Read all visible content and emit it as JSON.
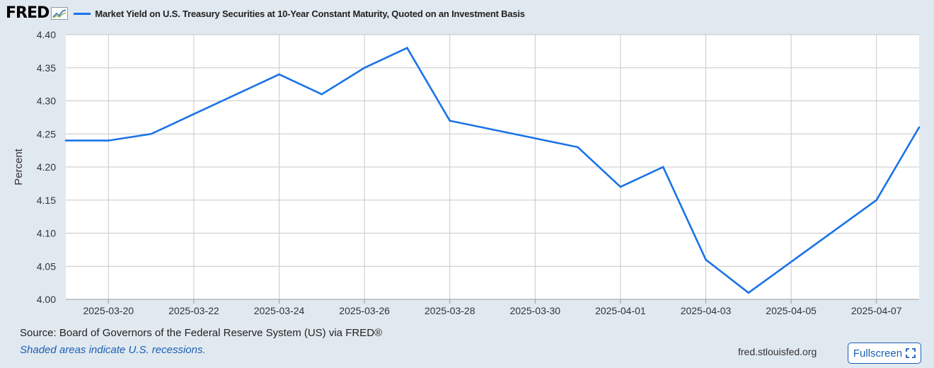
{
  "header": {
    "logo_text": "FRED",
    "legend_label": "Market Yield on U.S. Treasury Securities at 10-Year Constant Maturity, Quoted on an Investment Basis"
  },
  "footer": {
    "source": "Source: Board of Governors of the Federal Reserve System (US) via FRED®",
    "recession_note": "Shaded areas indicate U.S. recessions.",
    "site_url": "fred.stlouisfed.org",
    "fullscreen_label": "Fullscreen"
  },
  "colors": {
    "series": "#1a73e8",
    "background": "#e1e9f0",
    "plot_bg": "#ffffff",
    "grid": "#c8c8c8",
    "link": "#1a5fb4"
  },
  "chart_data": {
    "type": "line",
    "title": "",
    "ylabel": "Percent",
    "xlabel": "",
    "ylim": [
      4.0,
      4.4
    ],
    "xlim": [
      "2025-03-19",
      "2025-04-08"
    ],
    "yticks": [
      "4.00",
      "4.05",
      "4.10",
      "4.15",
      "4.20",
      "4.25",
      "4.30",
      "4.35",
      "4.40"
    ],
    "xticks": [
      "2025-03-20",
      "2025-03-22",
      "2025-03-24",
      "2025-03-26",
      "2025-03-28",
      "2025-03-30",
      "2025-04-01",
      "2025-04-03",
      "2025-04-05",
      "2025-04-07"
    ],
    "grid": true,
    "series": [
      {
        "name": "Market Yield on U.S. Treasury Securities at 10-Year Constant Maturity, Quoted on an Investment Basis",
        "points": [
          [
            "2025-03-19",
            4.24
          ],
          [
            "2025-03-20",
            4.24
          ],
          [
            "2025-03-21",
            4.25
          ],
          [
            "2025-03-24",
            4.34
          ],
          [
            "2025-03-25",
            4.31
          ],
          [
            "2025-03-26",
            4.35
          ],
          [
            "2025-03-27",
            4.38
          ],
          [
            "2025-03-28",
            4.27
          ],
          [
            "2025-03-31",
            4.23
          ],
          [
            "2025-04-01",
            4.17
          ],
          [
            "2025-04-02",
            4.2
          ],
          [
            "2025-04-03",
            4.06
          ],
          [
            "2025-04-04",
            4.01
          ],
          [
            "2025-04-07",
            4.15
          ],
          [
            "2025-04-08",
            4.26
          ]
        ]
      }
    ]
  }
}
